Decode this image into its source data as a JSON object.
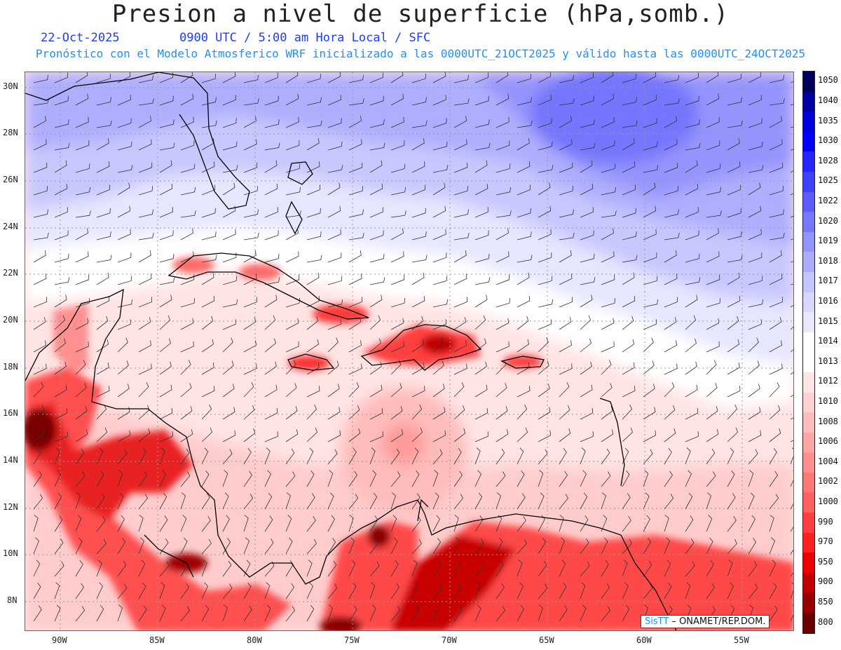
{
  "title": "Presion a nivel de superficie (hPa,somb.)",
  "date": "22-Oct-2025",
  "valid_time": "0900 UTC / 5:00 am Hora Local / SFC",
  "model_line": "Pronóstico con el Modelo Atmosferico WRF inicializado a las 0000UTC_21OCT2025 y válido hasta las  0000UTC_24OCT2025",
  "lat_labels": [
    "30N",
    "28N",
    "26N",
    "24N",
    "22N",
    "20N",
    "18N",
    "16N",
    "14N",
    "12N",
    "10N",
    "8N"
  ],
  "lon_labels": [
    "90W",
    "85W",
    "80W",
    "75W",
    "70W",
    "65W",
    "60W",
    "55W"
  ],
  "legend": {
    "labels": [
      "1050",
      "1040",
      "1035",
      "1030",
      "1028",
      "1025",
      "1022",
      "1020",
      "1019",
      "1018",
      "1017",
      "1016",
      "1015",
      "1014",
      "1013",
      "1012",
      "1010",
      "1008",
      "1006",
      "1004",
      "1002",
      "1000",
      "990",
      "970",
      "950",
      "900",
      "850",
      "800"
    ],
    "colors": [
      "#00005a",
      "#0000a0",
      "#0000d8",
      "#0000ff",
      "#2525ff",
      "#4040ff",
      "#5c5cff",
      "#7878ff",
      "#9494ff",
      "#acacff",
      "#c4c4ff",
      "#d8d8ff",
      "#e8e8ff",
      "#ffffff",
      "#ffffff",
      "#ffe6e6",
      "#ffd2d2",
      "#ffbcbc",
      "#ffa6a6",
      "#ff9090",
      "#ff7878",
      "#ff6060",
      "#ff4040",
      "#ff2020",
      "#ee0000",
      "#c00000",
      "#960000",
      "#6a0000"
    ]
  },
  "credit": {
    "brand": "SisTT",
    "text": "– ONAMET/REP.DOM."
  }
}
